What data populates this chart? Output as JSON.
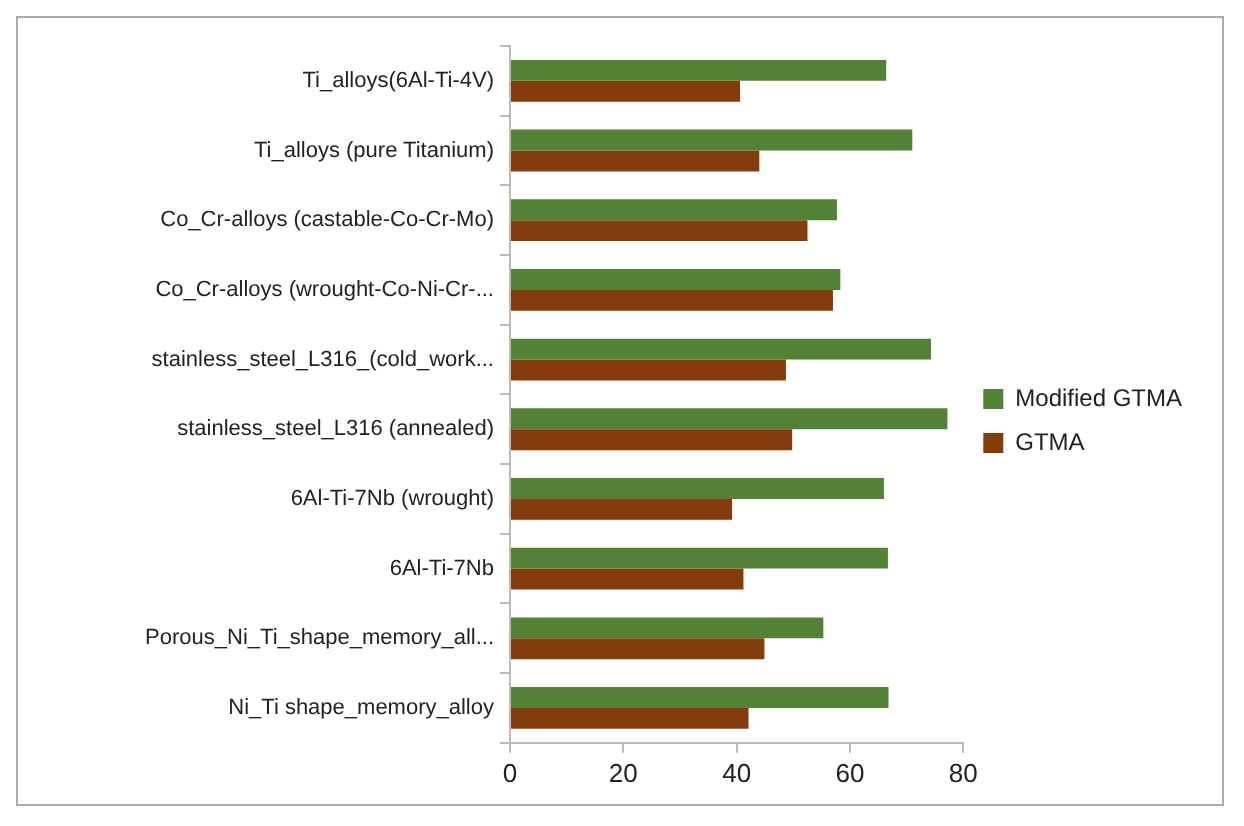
{
  "chart_data": {
    "type": "bar",
    "orientation": "horizontal",
    "categories": [
      "Ti_alloys(6Al-Ti-4V)",
      "Ti_alloys (pure Titanium)",
      "Co_Cr-alloys (castable-Co-Cr-Mo)",
      "Co_Cr-alloys (wrought-Co-Ni-Cr-...",
      "stainless_steel_L316_(cold_work...",
      "stainless_steel_L316 (annealed)",
      "6Al-Ti-7Nb (wrought)",
      "6Al-Ti-7Nb",
      "Porous_Ni_Ti_shape_memory_all...",
      "Ni_Ti shape_memory_alloy"
    ],
    "series": [
      {
        "name": "Modified GTMA",
        "color": "#538135",
        "values": [
          66.4,
          71,
          57.7,
          58.3,
          74.3,
          77.2,
          66,
          66.7,
          55.3,
          66.8
        ]
      },
      {
        "name": "GTMA",
        "color": "#843c0c",
        "values": [
          40.6,
          44,
          52.5,
          57,
          48.7,
          49.8,
          39.2,
          41.2,
          44.9,
          42.1
        ]
      }
    ],
    "xlim": [
      0,
      80
    ],
    "xticks": [
      0,
      20,
      40,
      60,
      80
    ],
    "grid": false,
    "legend": "right"
  }
}
